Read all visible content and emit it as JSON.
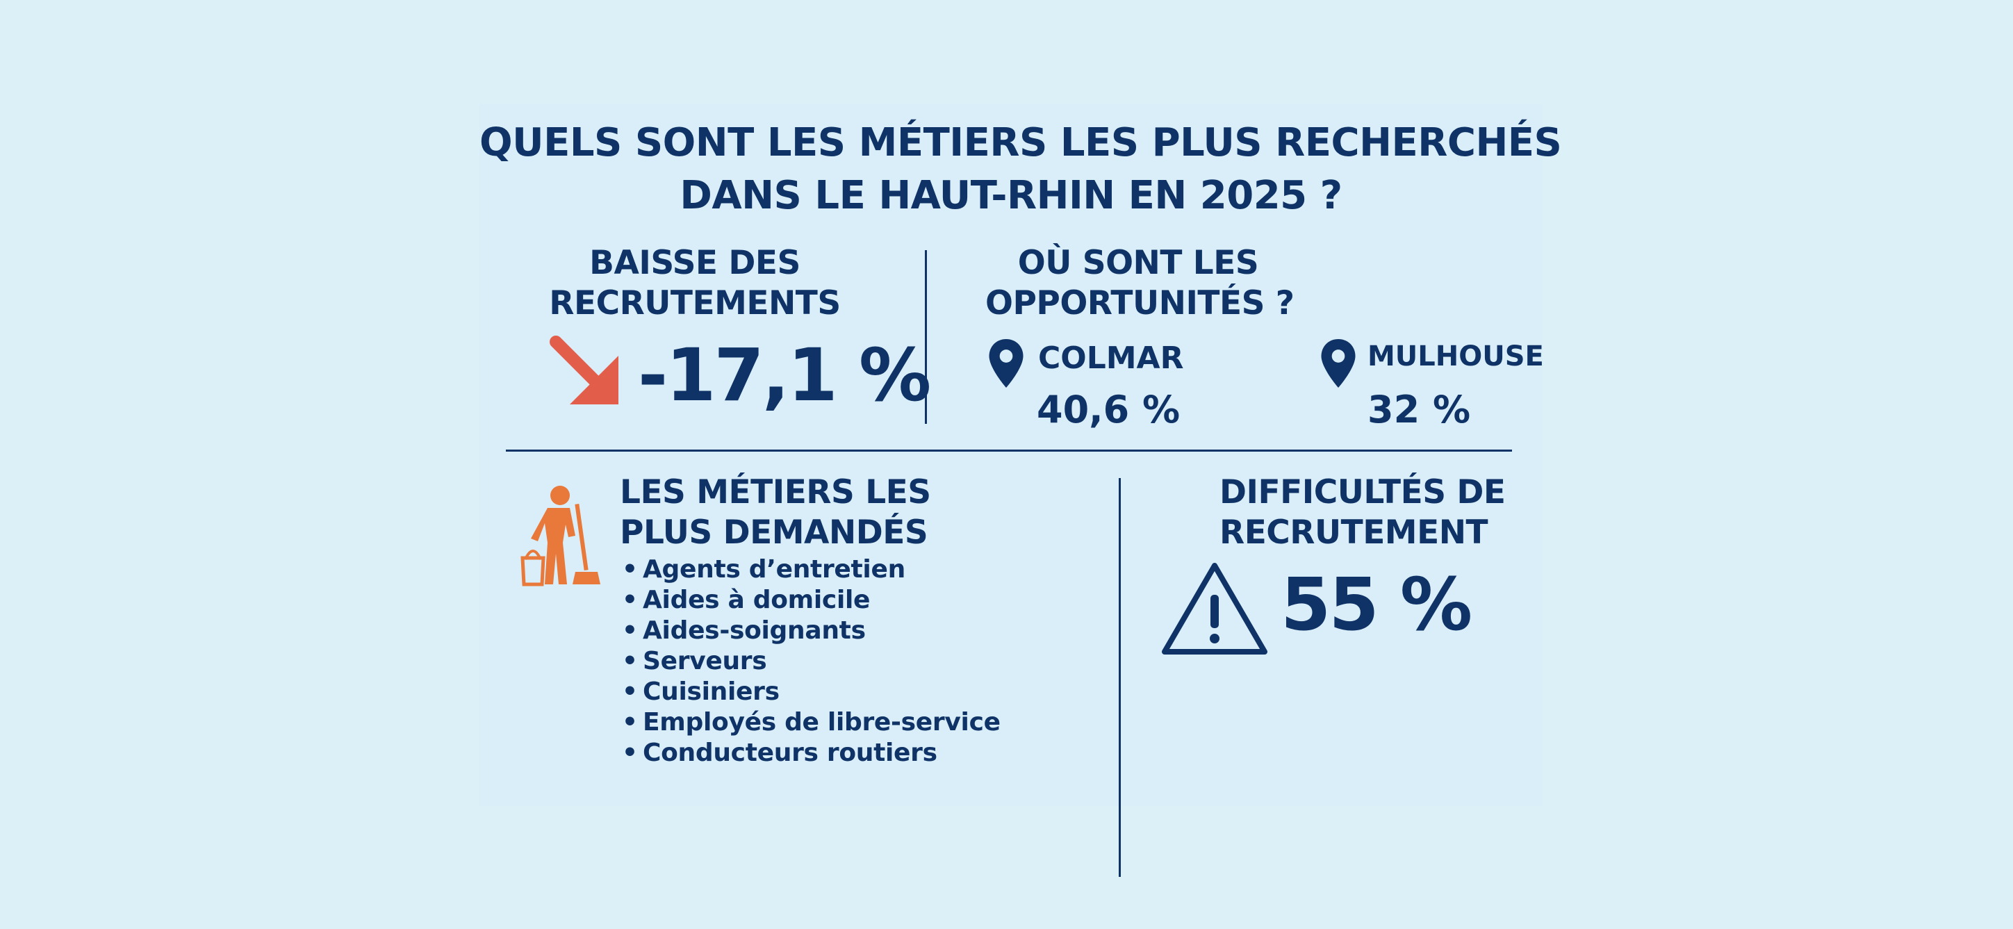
{
  "title": {
    "line1": "QUELS SONT LES MÉTIERS LES PLUS RECHERCHÉS",
    "line2": "DANS LE HAUT-RHIN EN 2025 ?"
  },
  "baisse": {
    "heading_line1": "BAISSE DES",
    "heading_line2": "RECRUTEMENTS",
    "value": "-17,1 %",
    "icon": "arrow-down-right-icon",
    "icon_color": "#e35d4b"
  },
  "opportunites": {
    "heading_line1": "OÙ SONT LES",
    "heading_line2": "OPPORTUNITÉS ?",
    "cities": [
      {
        "name": "COLMAR",
        "value": "40,6 %",
        "icon": "location-pin-icon"
      },
      {
        "name": "MULHOUSE",
        "value": "32 %",
        "icon": "location-pin-icon"
      }
    ]
  },
  "metiers": {
    "heading_line1": "LES MÉTIERS LES",
    "heading_line2": "PLUS DEMANDÉS",
    "icon": "cleaning-worker-icon",
    "icon_color": "#e8793a",
    "items": [
      "Agents d’entretien",
      "Aides à domicile",
      "Aides-soignants",
      "Serveurs",
      "Cuisiniers",
      "Employés de libre-service",
      "Conducteurs routiers"
    ]
  },
  "difficultes": {
    "heading_line1": "DIFFICULTÉS DE",
    "heading_line2": "RECRUTEMENT",
    "value": "55 %",
    "icon": "warning-triangle-icon"
  },
  "colors": {
    "background": "#dcf0f8",
    "text": "#0f3366",
    "accent_red": "#e35d4b",
    "accent_orange": "#e8793a"
  }
}
